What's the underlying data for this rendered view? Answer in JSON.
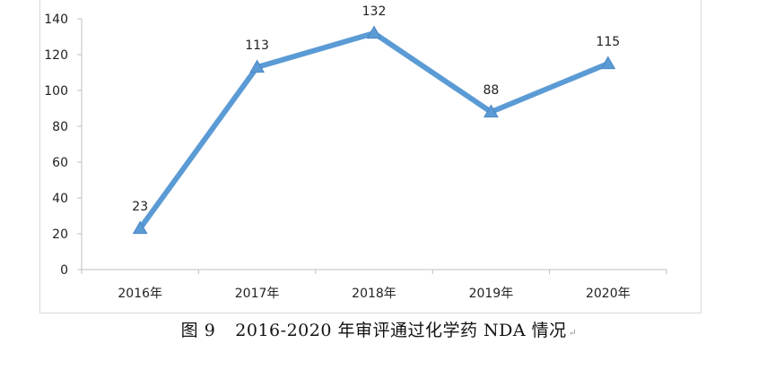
{
  "chart_data": {
    "type": "line",
    "categories": [
      "2016年",
      "2017年",
      "2018年",
      "2019年",
      "2020年"
    ],
    "series": [
      {
        "values": [
          23,
          113,
          132,
          88,
          115
        ]
      }
    ],
    "data_labels": [
      "23",
      "113",
      "132",
      "88",
      "115"
    ],
    "yticks": [
      "0",
      "20",
      "40",
      "60",
      "80",
      "100",
      "120",
      "140"
    ],
    "ylim": [
      0,
      140
    ],
    "grid": false,
    "legend": "none",
    "line_color": "#5b9bd5",
    "marker": "triangle"
  },
  "caption": {
    "figure_number": "图 9",
    "text": "2016-2020 年审评通过化学药 NDA 情况",
    "return_mark": "↵"
  }
}
